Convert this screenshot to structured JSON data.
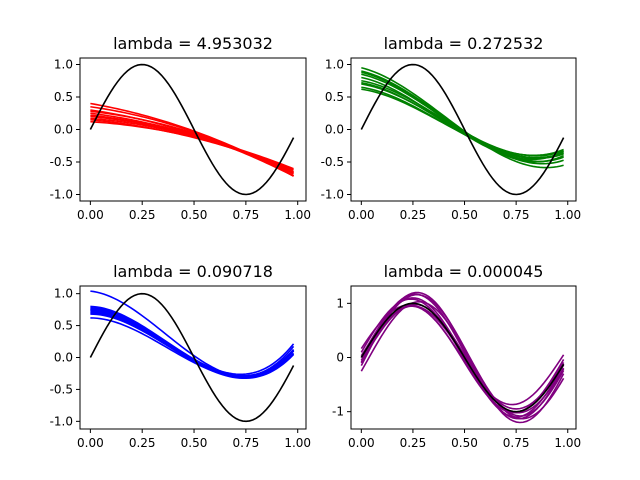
{
  "chart_data": [
    {
      "type": "line",
      "title": "lambda = 4.953032",
      "xlim": [
        -0.05,
        1.04
      ],
      "ylim": [
        -1.1,
        1.1
      ],
      "xticks": [
        "0.00",
        "0.25",
        "0.50",
        "0.75",
        "1.00"
      ],
      "yticks": [
        "1.0",
        "0.5",
        "0.0",
        "-0.5",
        "-1.0"
      ],
      "ytick_values": [
        1.0,
        0.5,
        0.0,
        -0.5,
        -1.0
      ],
      "true_function": {
        "color": "#000000",
        "x": [
          0,
          0.98
        ],
        "curve": "sin(2*pi*x)"
      },
      "fit_color": "#ff0000",
      "fits": [
        {
          "coeffs": [
            0.4,
            -0.55,
            -0.6
          ]
        },
        {
          "coeffs": [
            0.3,
            -0.45,
            -0.6
          ]
        },
        {
          "coeffs": [
            0.28,
            -0.35,
            -0.65
          ]
        },
        {
          "coeffs": [
            0.25,
            -0.4,
            -0.55
          ]
        },
        {
          "coeffs": [
            0.22,
            -0.35,
            -0.55
          ]
        },
        {
          "coeffs": [
            0.2,
            -0.3,
            -0.58
          ]
        },
        {
          "coeffs": [
            0.17,
            -0.25,
            -0.62
          ]
        },
        {
          "coeffs": [
            0.15,
            -0.3,
            -0.5
          ]
        },
        {
          "coeffs": [
            0.12,
            -0.2,
            -0.55
          ]
        },
        {
          "coeffs": [
            0.35,
            -0.45,
            -0.65
          ]
        }
      ]
    },
    {
      "type": "line",
      "title": "lambda = 0.272532",
      "xlim": [
        -0.05,
        1.04
      ],
      "ylim": [
        -1.1,
        1.1
      ],
      "xticks": [
        "0.00",
        "0.25",
        "0.50",
        "0.75",
        "1.00"
      ],
      "yticks": [
        "1.0",
        "0.5",
        "0.0",
        "-0.5",
        "-1.0"
      ],
      "ytick_values": [
        1.0,
        0.5,
        0.0,
        -0.5,
        -1.0
      ],
      "true_function": {
        "color": "#000000",
        "x": [
          0,
          0.98
        ],
        "curve": "sin(2*pi*x)"
      },
      "fit_color": "#008000",
      "fits": [
        {
          "coeffs": [
            0.95,
            -0.78,
            -4.0,
            3.3
          ]
        },
        {
          "coeffs": [
            0.9,
            -0.75,
            -3.85,
            3.25
          ]
        },
        {
          "coeffs": [
            0.85,
            -0.7,
            -3.75,
            3.2
          ]
        },
        {
          "coeffs": [
            0.75,
            -0.55,
            -3.55,
            3.0
          ]
        },
        {
          "coeffs": [
            0.7,
            -0.5,
            -3.45,
            2.95
          ]
        },
        {
          "coeffs": [
            0.62,
            -0.45,
            -3.3,
            2.85
          ]
        },
        {
          "coeffs": [
            0.8,
            -0.65,
            -3.95,
            3.5
          ]
        },
        {
          "coeffs": [
            0.88,
            -0.7,
            -4.1,
            3.55
          ]
        },
        {
          "coeffs": [
            0.72,
            -0.55,
            -3.6,
            3.1
          ]
        },
        {
          "coeffs": [
            0.65,
            -0.48,
            -3.4,
            2.9
          ]
        }
      ]
    },
    {
      "type": "line",
      "title": "lambda = 0.090718",
      "xlim": [
        -0.05,
        1.04
      ],
      "ylim": [
        -1.12,
        1.12
      ],
      "xticks": [
        "0.00",
        "0.25",
        "0.50",
        "0.75",
        "1.00"
      ],
      "yticks": [
        "1.0",
        "0.5",
        "0.0",
        "-0.5",
        "-1.0"
      ],
      "ytick_values": [
        1.0,
        0.5,
        0.0,
        -0.5,
        -1.0
      ],
      "true_function": {
        "color": "#000000",
        "x": [
          0,
          0.98
        ],
        "curve": "sin(2*pi*x)"
      },
      "fit_color": "#0000ff",
      "fits": [
        {
          "coeffs": [
            1.04,
            -0.35,
            -6.2,
            5.7
          ]
        },
        {
          "coeffs": [
            0.8,
            -0.1,
            -5.8,
            5.4
          ]
        },
        {
          "coeffs": [
            0.78,
            -0.1,
            -5.7,
            5.2
          ]
        },
        {
          "coeffs": [
            0.75,
            -0.05,
            -5.6,
            5.1
          ]
        },
        {
          "coeffs": [
            0.72,
            -0.1,
            -5.4,
            4.9
          ]
        },
        {
          "coeffs": [
            0.7,
            -0.05,
            -5.4,
            4.95
          ]
        },
        {
          "coeffs": [
            0.68,
            0.0,
            -5.4,
            4.9
          ]
        },
        {
          "coeffs": [
            0.62,
            0.0,
            -5.1,
            4.6
          ]
        },
        {
          "coeffs": [
            0.74,
            -0.1,
            -5.5,
            5.0
          ]
        },
        {
          "coeffs": [
            0.76,
            -0.05,
            -5.9,
            5.45
          ]
        }
      ]
    },
    {
      "type": "line",
      "title": "lambda = 0.000045",
      "xlim": [
        -0.05,
        1.04
      ],
      "ylim": [
        -1.32,
        1.32
      ],
      "xticks": [
        "0.00",
        "0.25",
        "0.50",
        "0.75",
        "1.00"
      ],
      "yticks": [
        "1",
        "0",
        "-1"
      ],
      "ytick_values": [
        1,
        0,
        -1
      ],
      "true_function": {
        "color": "#000000",
        "x": [
          0,
          0.98
        ],
        "curve": "sin(2*pi*x)"
      },
      "fit_color": "#800080",
      "fits": [
        {
          "amp": 1.2,
          "shift": 0.02,
          "offset": 0.0
        },
        {
          "amp": 1.15,
          "shift": 0.01,
          "offset": 0.02
        },
        {
          "amp": 1.1,
          "shift": 0.0,
          "offset": 0.0
        },
        {
          "amp": 1.05,
          "shift": -0.01,
          "offset": 0.03
        },
        {
          "amp": 1.0,
          "shift": 0.01,
          "offset": -0.02
        },
        {
          "amp": 0.95,
          "shift": 0.0,
          "offset": 0.0
        },
        {
          "amp": 0.92,
          "shift": -0.02,
          "offset": 0.05
        },
        {
          "amp": 1.08,
          "shift": 0.03,
          "offset": -0.05
        },
        {
          "amp": 0.98,
          "shift": -0.01,
          "offset": -0.03
        },
        {
          "amp": 1.12,
          "shift": 0.02,
          "offset": 0.04
        }
      ]
    }
  ]
}
